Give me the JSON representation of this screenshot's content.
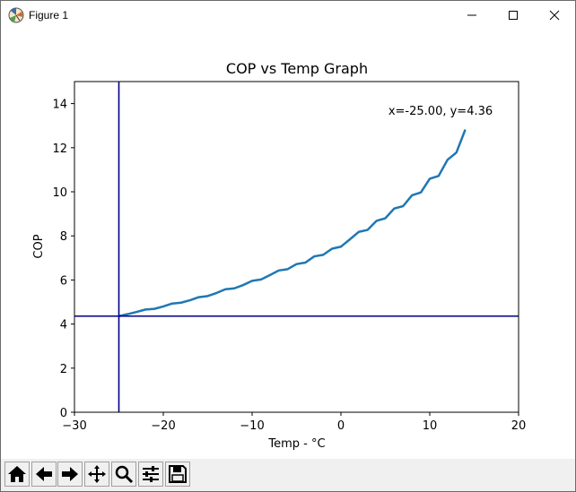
{
  "window": {
    "title": "Figure 1",
    "icon": "matplotlib-icon",
    "controls": [
      "minimize-icon",
      "maximize-icon",
      "close-icon"
    ]
  },
  "toolbar": {
    "buttons": [
      "home-icon",
      "back-arrow-icon",
      "forward-arrow-icon",
      "pan-move-icon",
      "zoom-magnifier-icon",
      "configure-subplots-icon",
      "save-icon"
    ]
  },
  "cursor_readout": "x=-25.00, y=4.36",
  "chart_data": {
    "type": "line",
    "title": "COP vs Temp Graph",
    "xlabel": "Temp - °C",
    "ylabel": "COP",
    "xlim": [
      -30,
      20
    ],
    "ylim": [
      0,
      15
    ],
    "xticks": [
      -30,
      -20,
      -10,
      0,
      10,
      20
    ],
    "xtick_labels": [
      "−30",
      "−20",
      "−10",
      "0",
      "10",
      "20"
    ],
    "yticks": [
      0,
      2,
      4,
      6,
      8,
      10,
      12,
      14
    ],
    "ytick_labels": [
      "0",
      "2",
      "4",
      "6",
      "8",
      "10",
      "12",
      "14"
    ],
    "grid": false,
    "series": [
      {
        "color": "#1f77b4",
        "x": [
          -25,
          -24,
          -23,
          -22,
          -21,
          -20,
          -19,
          -18,
          -17,
          -16,
          -15,
          -14,
          -13,
          -12,
          -11,
          -10,
          -9,
          -8,
          -7,
          -6,
          -5,
          -4,
          -3,
          -2,
          -1,
          0,
          1,
          2,
          3,
          4,
          5,
          6,
          7,
          8,
          9,
          10,
          11,
          12,
          13,
          14
        ],
        "y": [
          4.36,
          4.45,
          4.55,
          4.66,
          4.69,
          4.8,
          4.93,
          4.97,
          5.08,
          5.22,
          5.27,
          5.41,
          5.58,
          5.62,
          5.77,
          5.96,
          6.02,
          6.22,
          6.43,
          6.49,
          6.72,
          6.79,
          7.07,
          7.14,
          7.42,
          7.51,
          7.84,
          8.18,
          8.27,
          8.68,
          8.8,
          9.24,
          9.35,
          9.84,
          9.97,
          10.59,
          10.72,
          11.45,
          11.78,
          12.82
        ]
      }
    ],
    "crosshair": {
      "x": -25.0,
      "y": 4.36,
      "color": "#00008b"
    }
  }
}
